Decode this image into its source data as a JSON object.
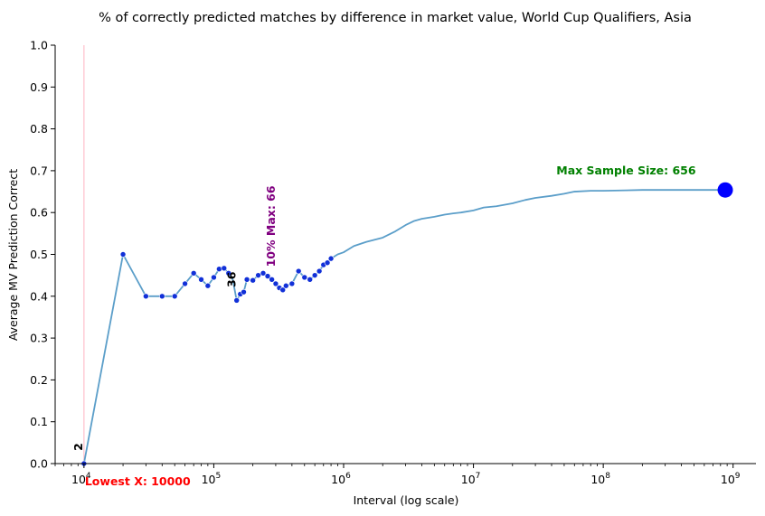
{
  "chart_data": {
    "type": "line",
    "title": "% of correctly predicted matches by difference in market value, World Cup Qualifiers, Asia",
    "xlabel": "Interval (log scale)",
    "ylabel": "Average MV Prediction Correct",
    "xscale": "log",
    "xlim": [
      6000,
      1500000000
    ],
    "ylim": [
      0,
      1.0
    ],
    "y_ticks": [
      "0.0",
      "0.1",
      "0.2",
      "0.3",
      "0.4",
      "0.5",
      "0.6",
      "0.7",
      "0.8",
      "0.9",
      "1.0"
    ],
    "x_ticks": [
      {
        "value": 10000,
        "base": "10",
        "exp": "4"
      },
      {
        "value": 100000,
        "base": "10",
        "exp": "5"
      },
      {
        "value": 1000000,
        "base": "10",
        "exp": "6"
      },
      {
        "value": 10000000,
        "base": "10",
        "exp": "7"
      },
      {
        "value": 100000000,
        "base": "10",
        "exp": "8"
      },
      {
        "value": 1000000000,
        "base": "10",
        "exp": "9"
      }
    ],
    "grid": false,
    "colors": {
      "line": "#5b9ec9",
      "marker": "#1130d8",
      "end_marker": "#0000ff",
      "lowest_x_line": "#ffc0cb",
      "lowest_x_text": "#ff0000",
      "max_sample_text": "#008000",
      "ten_pct_text": "#800080",
      "count_text": "#000000"
    },
    "series": [
      {
        "points": [
          [
            10000,
            0.0
          ],
          [
            20000,
            0.5
          ],
          [
            30000,
            0.4
          ],
          [
            40000,
            0.4
          ],
          [
            50000,
            0.4
          ],
          [
            60000,
            0.43
          ],
          [
            70000,
            0.455
          ],
          [
            80000,
            0.44
          ],
          [
            90000,
            0.425
          ],
          [
            100000,
            0.445
          ],
          [
            110000,
            0.465
          ],
          [
            120000,
            0.467
          ],
          [
            130000,
            0.455
          ],
          [
            140000,
            0.44
          ],
          [
            150000,
            0.39
          ],
          [
            160000,
            0.405
          ],
          [
            170000,
            0.41
          ],
          [
            180000,
            0.44
          ],
          [
            200000,
            0.438
          ],
          [
            220000,
            0.45
          ],
          [
            240000,
            0.455
          ],
          [
            260000,
            0.448
          ],
          [
            280000,
            0.44
          ],
          [
            300000,
            0.43
          ],
          [
            320000,
            0.42
          ],
          [
            340000,
            0.415
          ],
          [
            360000,
            0.425
          ],
          [
            400000,
            0.43
          ],
          [
            450000,
            0.46
          ],
          [
            500000,
            0.445
          ],
          [
            550000,
            0.44
          ],
          [
            600000,
            0.45
          ],
          [
            650000,
            0.46
          ],
          [
            700000,
            0.475
          ],
          [
            750000,
            0.48
          ],
          [
            800000,
            0.49
          ],
          [
            900000,
            0.5
          ],
          [
            1000000,
            0.505
          ],
          [
            1200000,
            0.52
          ],
          [
            1500000,
            0.53
          ],
          [
            2000000,
            0.54
          ],
          [
            2500000,
            0.555
          ],
          [
            3000000,
            0.57
          ],
          [
            3500000,
            0.58
          ],
          [
            4000000,
            0.585
          ],
          [
            5000000,
            0.59
          ],
          [
            6000000,
            0.595
          ],
          [
            7000000,
            0.598
          ],
          [
            8000000,
            0.6
          ],
          [
            10000000,
            0.605
          ],
          [
            12000000,
            0.612
          ],
          [
            15000000,
            0.615
          ],
          [
            20000000,
            0.622
          ],
          [
            25000000,
            0.63
          ],
          [
            30000000,
            0.635
          ],
          [
            40000000,
            0.64
          ],
          [
            50000000,
            0.645
          ],
          [
            60000000,
            0.65
          ],
          [
            80000000,
            0.652
          ],
          [
            100000000,
            0.652
          ],
          [
            150000000,
            0.653
          ],
          [
            200000000,
            0.654
          ],
          [
            400000000,
            0.654
          ],
          [
            870000000,
            0.654
          ]
        ]
      }
    ],
    "marker_points": [
      [
        10000,
        0.0
      ],
      [
        20000,
        0.5
      ],
      [
        30000,
        0.4
      ],
      [
        40000,
        0.4
      ],
      [
        50000,
        0.4
      ],
      [
        60000,
        0.43
      ],
      [
        70000,
        0.455
      ],
      [
        80000,
        0.44
      ],
      [
        90000,
        0.425
      ],
      [
        100000,
        0.445
      ],
      [
        110000,
        0.465
      ],
      [
        120000,
        0.467
      ],
      [
        130000,
        0.455
      ],
      [
        150000,
        0.39
      ],
      [
        160000,
        0.405
      ],
      [
        170000,
        0.41
      ],
      [
        180000,
        0.44
      ],
      [
        200000,
        0.438
      ],
      [
        220000,
        0.45
      ],
      [
        240000,
        0.455
      ],
      [
        260000,
        0.448
      ],
      [
        280000,
        0.44
      ],
      [
        300000,
        0.43
      ],
      [
        320000,
        0.42
      ],
      [
        340000,
        0.415
      ],
      [
        360000,
        0.425
      ],
      [
        400000,
        0.43
      ],
      [
        450000,
        0.46
      ],
      [
        500000,
        0.445
      ],
      [
        550000,
        0.44
      ],
      [
        600000,
        0.45
      ],
      [
        650000,
        0.46
      ],
      [
        700000,
        0.475
      ],
      [
        750000,
        0.48
      ],
      [
        800000,
        0.49
      ]
    ],
    "end_point": [
      870000000,
      0.654
    ],
    "annotations": {
      "max_sample": "Max Sample Size: 656",
      "ten_pct": "10% Max: 66",
      "lowest_x": "Lowest X: 10000",
      "count_start": "2",
      "count_mid": "36"
    },
    "annotation_anchors": {
      "max_sample_x": 150000000,
      "max_sample_y": 0.7,
      "ten_pct_x": 320000,
      "ten_pct_y": 0.47,
      "lowest_x_x": 10000,
      "count_start_x": 10000,
      "count_start_y": 0.04,
      "count_mid_x": 150000,
      "count_mid_y": 0.44
    }
  }
}
